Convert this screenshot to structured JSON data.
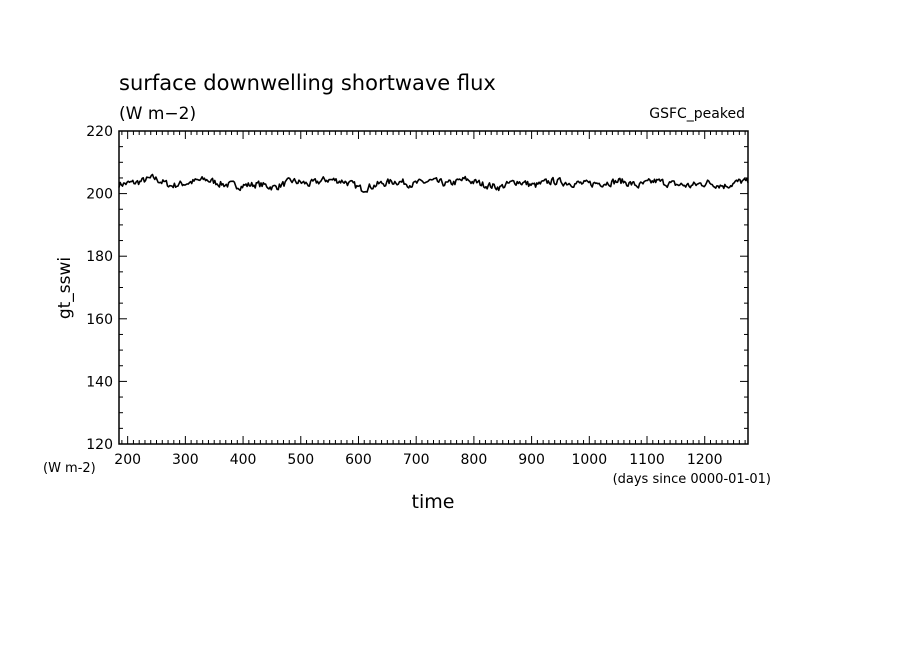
{
  "chart_data": {
    "type": "line",
    "title": "surface downwelling shortwave flux",
    "subtitle": "(W m−2)",
    "experiment": "GSFC_peaked",
    "xlabel": "time",
    "x_units": "(days since 0000-01-01)",
    "ylabel": "gt_sswi",
    "y_units": "(W m-2)",
    "xlim": [
      185,
      1275
    ],
    "ylim": [
      120,
      220
    ],
    "xticks": [
      200,
      300,
      400,
      500,
      600,
      700,
      800,
      900,
      1000,
      1100,
      1200
    ],
    "yticks": [
      120,
      140,
      160,
      180,
      200,
      220
    ],
    "grid": false,
    "series": [
      {
        "x": [
          185,
          215,
          245,
          275,
          305,
          335,
          365,
          395,
          425,
          455,
          485,
          515,
          545,
          575,
          605,
          635,
          665,
          695,
          725,
          755,
          785,
          815,
          845,
          875,
          905,
          935,
          965,
          995,
          1025,
          1055,
          1085,
          1115,
          1145,
          1175,
          1205,
          1235,
          1265,
          1275
        ],
        "values": [
          203,
          203.5,
          205,
          202.5,
          203.5,
          204.5,
          203,
          202.5,
          203,
          202,
          204,
          203,
          204.5,
          204,
          201.5,
          203,
          204,
          203,
          204,
          203,
          204.5,
          203,
          202,
          204,
          202.5,
          204,
          203.5,
          203,
          203.5,
          204,
          202.5,
          204,
          203,
          202.5,
          203.5,
          202.5,
          204,
          203.5
        ]
      }
    ]
  }
}
